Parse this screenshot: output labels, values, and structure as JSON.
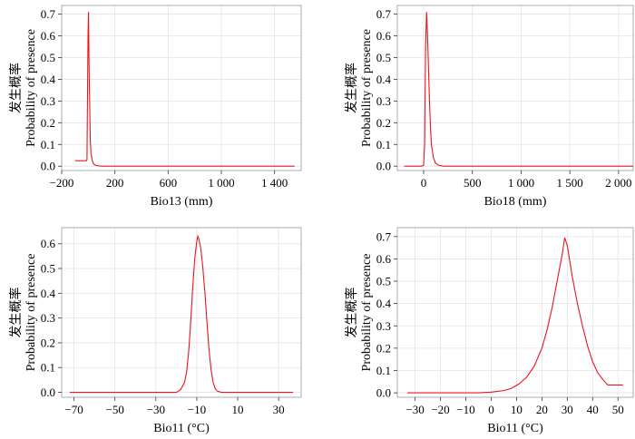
{
  "chart_data": [
    {
      "type": "line",
      "title": "",
      "ylabel_cn": "发生概率",
      "ylabel": "Probability of presence",
      "xlabel": "Bio13 (mm)",
      "xlim": [
        -200,
        1600
      ],
      "ylim": [
        -0.02,
        0.74
      ],
      "xticks": [
        -200,
        200,
        600,
        1000,
        1400
      ],
      "xtick_labels": [
        "−200",
        "200",
        "600",
        "1 000",
        "1 400"
      ],
      "yticks": [
        0,
        0.1,
        0.2,
        0.3,
        0.4,
        0.5,
        0.6,
        0.7
      ],
      "ytick_labels": [
        "0.0",
        "0.1",
        "0.2",
        "0.3",
        "0.4",
        "0.5",
        "0.6",
        "0.7"
      ],
      "line_color": "#e8161b",
      "series": [
        {
          "name": "Bio13",
          "x": [
            -100,
            -15,
            -10,
            -2,
            2,
            5,
            10,
            15,
            20,
            30,
            40,
            60,
            100,
            1550
          ],
          "y": [
            0.025,
            0.025,
            0.03,
            0.6,
            0.71,
            0.5,
            0.3,
            0.12,
            0.06,
            0.025,
            0.01,
            0.003,
            0.0,
            0.0
          ]
        }
      ]
    },
    {
      "type": "line",
      "title": "",
      "ylabel_cn": "发生概率",
      "ylabel": "Probability of presence",
      "xlabel": "Bio18 (mm)",
      "xlim": [
        -270,
        2150
      ],
      "ylim": [
        -0.02,
        0.74
      ],
      "xticks": [
        0,
        500,
        1000,
        1500,
        2000
      ],
      "xtick_labels": [
        "0",
        "500",
        "1 000",
        "1 500",
        "2 000"
      ],
      "yticks": [
        0,
        0.1,
        0.2,
        0.3,
        0.4,
        0.5,
        0.6,
        0.7
      ],
      "ytick_labels": [
        "0.0",
        "0.1",
        "0.2",
        "0.3",
        "0.4",
        "0.5",
        "0.6",
        "0.7"
      ],
      "line_color": "#e8161b",
      "series": [
        {
          "name": "Bio18",
          "x": [
            -200,
            -20,
            0,
            10,
            20,
            30,
            40,
            50,
            60,
            70,
            80,
            100,
            120,
            150,
            200,
            2150
          ],
          "y": [
            0.0,
            0.0,
            0.005,
            0.1,
            0.55,
            0.71,
            0.6,
            0.45,
            0.3,
            0.18,
            0.1,
            0.04,
            0.015,
            0.005,
            0.0,
            0.0
          ]
        }
      ]
    },
    {
      "type": "line",
      "title": "",
      "ylabel_cn": "发生概率",
      "ylabel": "Probability of presence",
      "xlabel": "Bio11 (°C)",
      "xlim": [
        -76,
        41
      ],
      "ylim": [
        -0.02,
        0.665
      ],
      "xticks": [
        -70,
        -50,
        -30,
        -10,
        10,
        30
      ],
      "xtick_labels": [
        "−70",
        "−50",
        "−30",
        "−10",
        "10",
        "30"
      ],
      "yticks": [
        0,
        0.1,
        0.2,
        0.3,
        0.4,
        0.5,
        0.6
      ],
      "ytick_labels": [
        "0.0",
        "0.1",
        "0.2",
        "0.3",
        "0.4",
        "0.5",
        "0.6"
      ],
      "line_color": "#e8161b",
      "series": [
        {
          "name": "Bio11",
          "x": [
            -72,
            -20,
            -18,
            -16,
            -15,
            -14,
            -13,
            -12,
            -11,
            -10,
            -9.5,
            -9,
            -8,
            -7,
            -6,
            -5,
            -4,
            -3,
            -2,
            -1,
            0,
            2,
            37
          ],
          "y": [
            0.0,
            0.0,
            0.01,
            0.04,
            0.08,
            0.16,
            0.28,
            0.42,
            0.54,
            0.61,
            0.63,
            0.62,
            0.58,
            0.5,
            0.4,
            0.28,
            0.17,
            0.09,
            0.04,
            0.015,
            0.005,
            0.0,
            0.0
          ]
        }
      ]
    },
    {
      "type": "line",
      "title": "",
      "ylabel_cn": "发生概率",
      "ylabel": "Probability of presence",
      "xlabel": "Bio11 (°C)",
      "xlim": [
        -37,
        56
      ],
      "ylim": [
        -0.02,
        0.74
      ],
      "xticks": [
        -30,
        -20,
        -10,
        0,
        10,
        20,
        30,
        40,
        50
      ],
      "xtick_labels": [
        "−30",
        "−20",
        "−10",
        "0",
        "10",
        "20",
        "30",
        "40",
        "50"
      ],
      "yticks": [
        0,
        0.1,
        0.2,
        0.3,
        0.4,
        0.5,
        0.6,
        0.7
      ],
      "ytick_labels": [
        "0.0",
        "0.1",
        "0.2",
        "0.3",
        "0.4",
        "0.5",
        "0.6",
        "0.7"
      ],
      "line_color": "#e8161b",
      "series": [
        {
          "name": "Bio11",
          "x": [
            -33,
            -5,
            0,
            5,
            8,
            11,
            14,
            17,
            20,
            22,
            24,
            26,
            28,
            29,
            30,
            32,
            34,
            36,
            38,
            40,
            42,
            44,
            46,
            48,
            52
          ],
          "y": [
            0.0,
            0.0,
            0.003,
            0.01,
            0.02,
            0.04,
            0.07,
            0.12,
            0.2,
            0.28,
            0.38,
            0.5,
            0.62,
            0.695,
            0.66,
            0.52,
            0.4,
            0.3,
            0.21,
            0.14,
            0.09,
            0.06,
            0.035,
            0.035,
            0.035
          ]
        }
      ]
    }
  ]
}
